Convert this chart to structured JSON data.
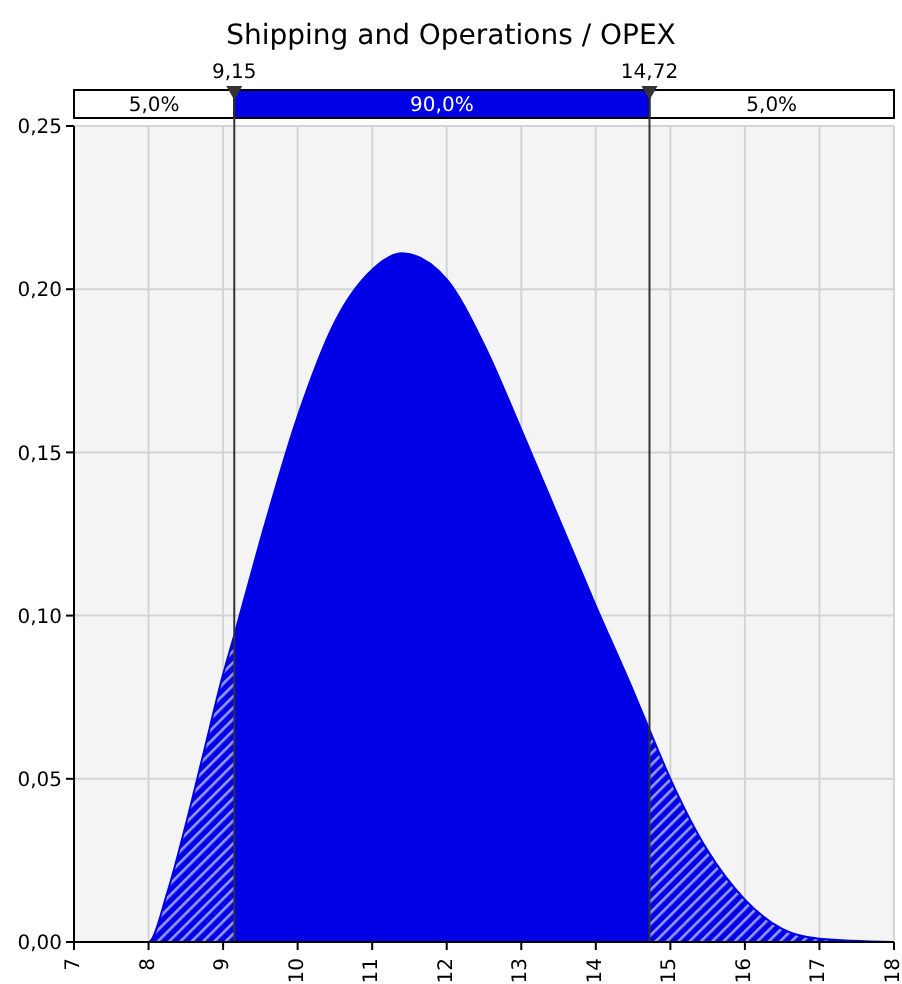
{
  "chart_data": {
    "type": "area",
    "title": "Shipping and Operations / OPEX",
    "x": [
      7,
      8,
      8.25,
      8.5,
      8.75,
      9,
      9.15,
      9.5,
      10,
      10.5,
      11,
      11.4,
      12,
      12.5,
      13,
      13.5,
      14,
      14.5,
      14.72,
      15,
      15.5,
      16,
      16.5,
      17,
      18
    ],
    "values": [
      0,
      0,
      0.015,
      0.036,
      0.059,
      0.082,
      0.094,
      0.123,
      0.161,
      0.19,
      0.206,
      0.211,
      0.203,
      0.183,
      0.157,
      0.13,
      0.103,
      0.077,
      0.065,
      0.05,
      0.028,
      0.013,
      0.004,
      0.001,
      0
    ],
    "color": "#0000e6",
    "xlim": [
      7,
      18
    ],
    "xticks": [
      7,
      8,
      9,
      10,
      11,
      12,
      13,
      14,
      15,
      16,
      17,
      18
    ],
    "ylim": [
      0,
      0.25
    ],
    "yticks": [
      {
        "value": 0,
        "label": "0,00"
      },
      {
        "value": 0.05,
        "label": "0,05"
      },
      {
        "value": 0.1,
        "label": "0,10"
      },
      {
        "value": 0.15,
        "label": "0,15"
      },
      {
        "value": 0.2,
        "label": "0,20"
      },
      {
        "value": 0.25,
        "label": "0,25"
      }
    ],
    "grid": true,
    "ref_lines": [
      {
        "axis": "x",
        "value": 9.15,
        "label": "9,15"
      },
      {
        "axis": "x",
        "value": 14.72,
        "label": "14,72"
      }
    ],
    "annotations": [
      "5,0%",
      "90,0%",
      "5,0%"
    ]
  }
}
